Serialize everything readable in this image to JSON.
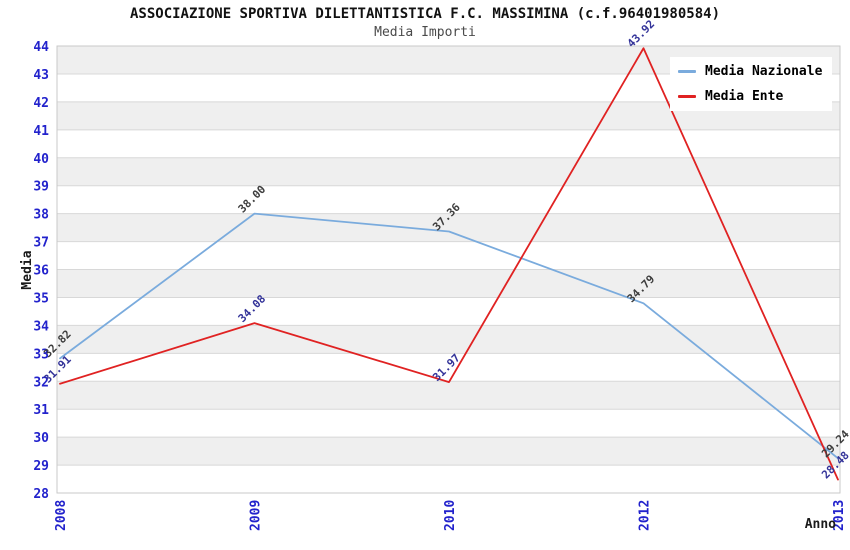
{
  "chart_data": {
    "type": "line",
    "title": "ASSOCIAZIONE SPORTIVA DILETTANTISTICA F.C. MASSIMINA (c.f.96401980584)",
    "subtitle": "Media Importi",
    "categories": [
      "2008",
      "2009",
      "2010",
      "2012",
      "2013"
    ],
    "series": [
      {
        "name": "Media Nazionale",
        "color": "#7aabdd",
        "label_color": "#3d3d3d",
        "values": [
          32.82,
          38.0,
          37.36,
          34.79,
          29.24
        ]
      },
      {
        "name": "Media Ente",
        "color": "#e02222",
        "label_color": "#333399",
        "values": [
          31.91,
          34.08,
          31.97,
          43.92,
          28.48
        ]
      }
    ],
    "xlabel": "Anno",
    "ylabel": "Media",
    "ylim": [
      28,
      44
    ],
    "ytick_step": 1,
    "legend_position": "top-right",
    "grid": "horizontal-unit-bands",
    "colors": {
      "axis_tick": "#2222cc",
      "axis_title": "#1a1a1a",
      "band_gray": "#efefef",
      "band_white": "#ffffff",
      "grid_line": "#d8d8d8",
      "plot_border": "#c9c9c9"
    }
  }
}
